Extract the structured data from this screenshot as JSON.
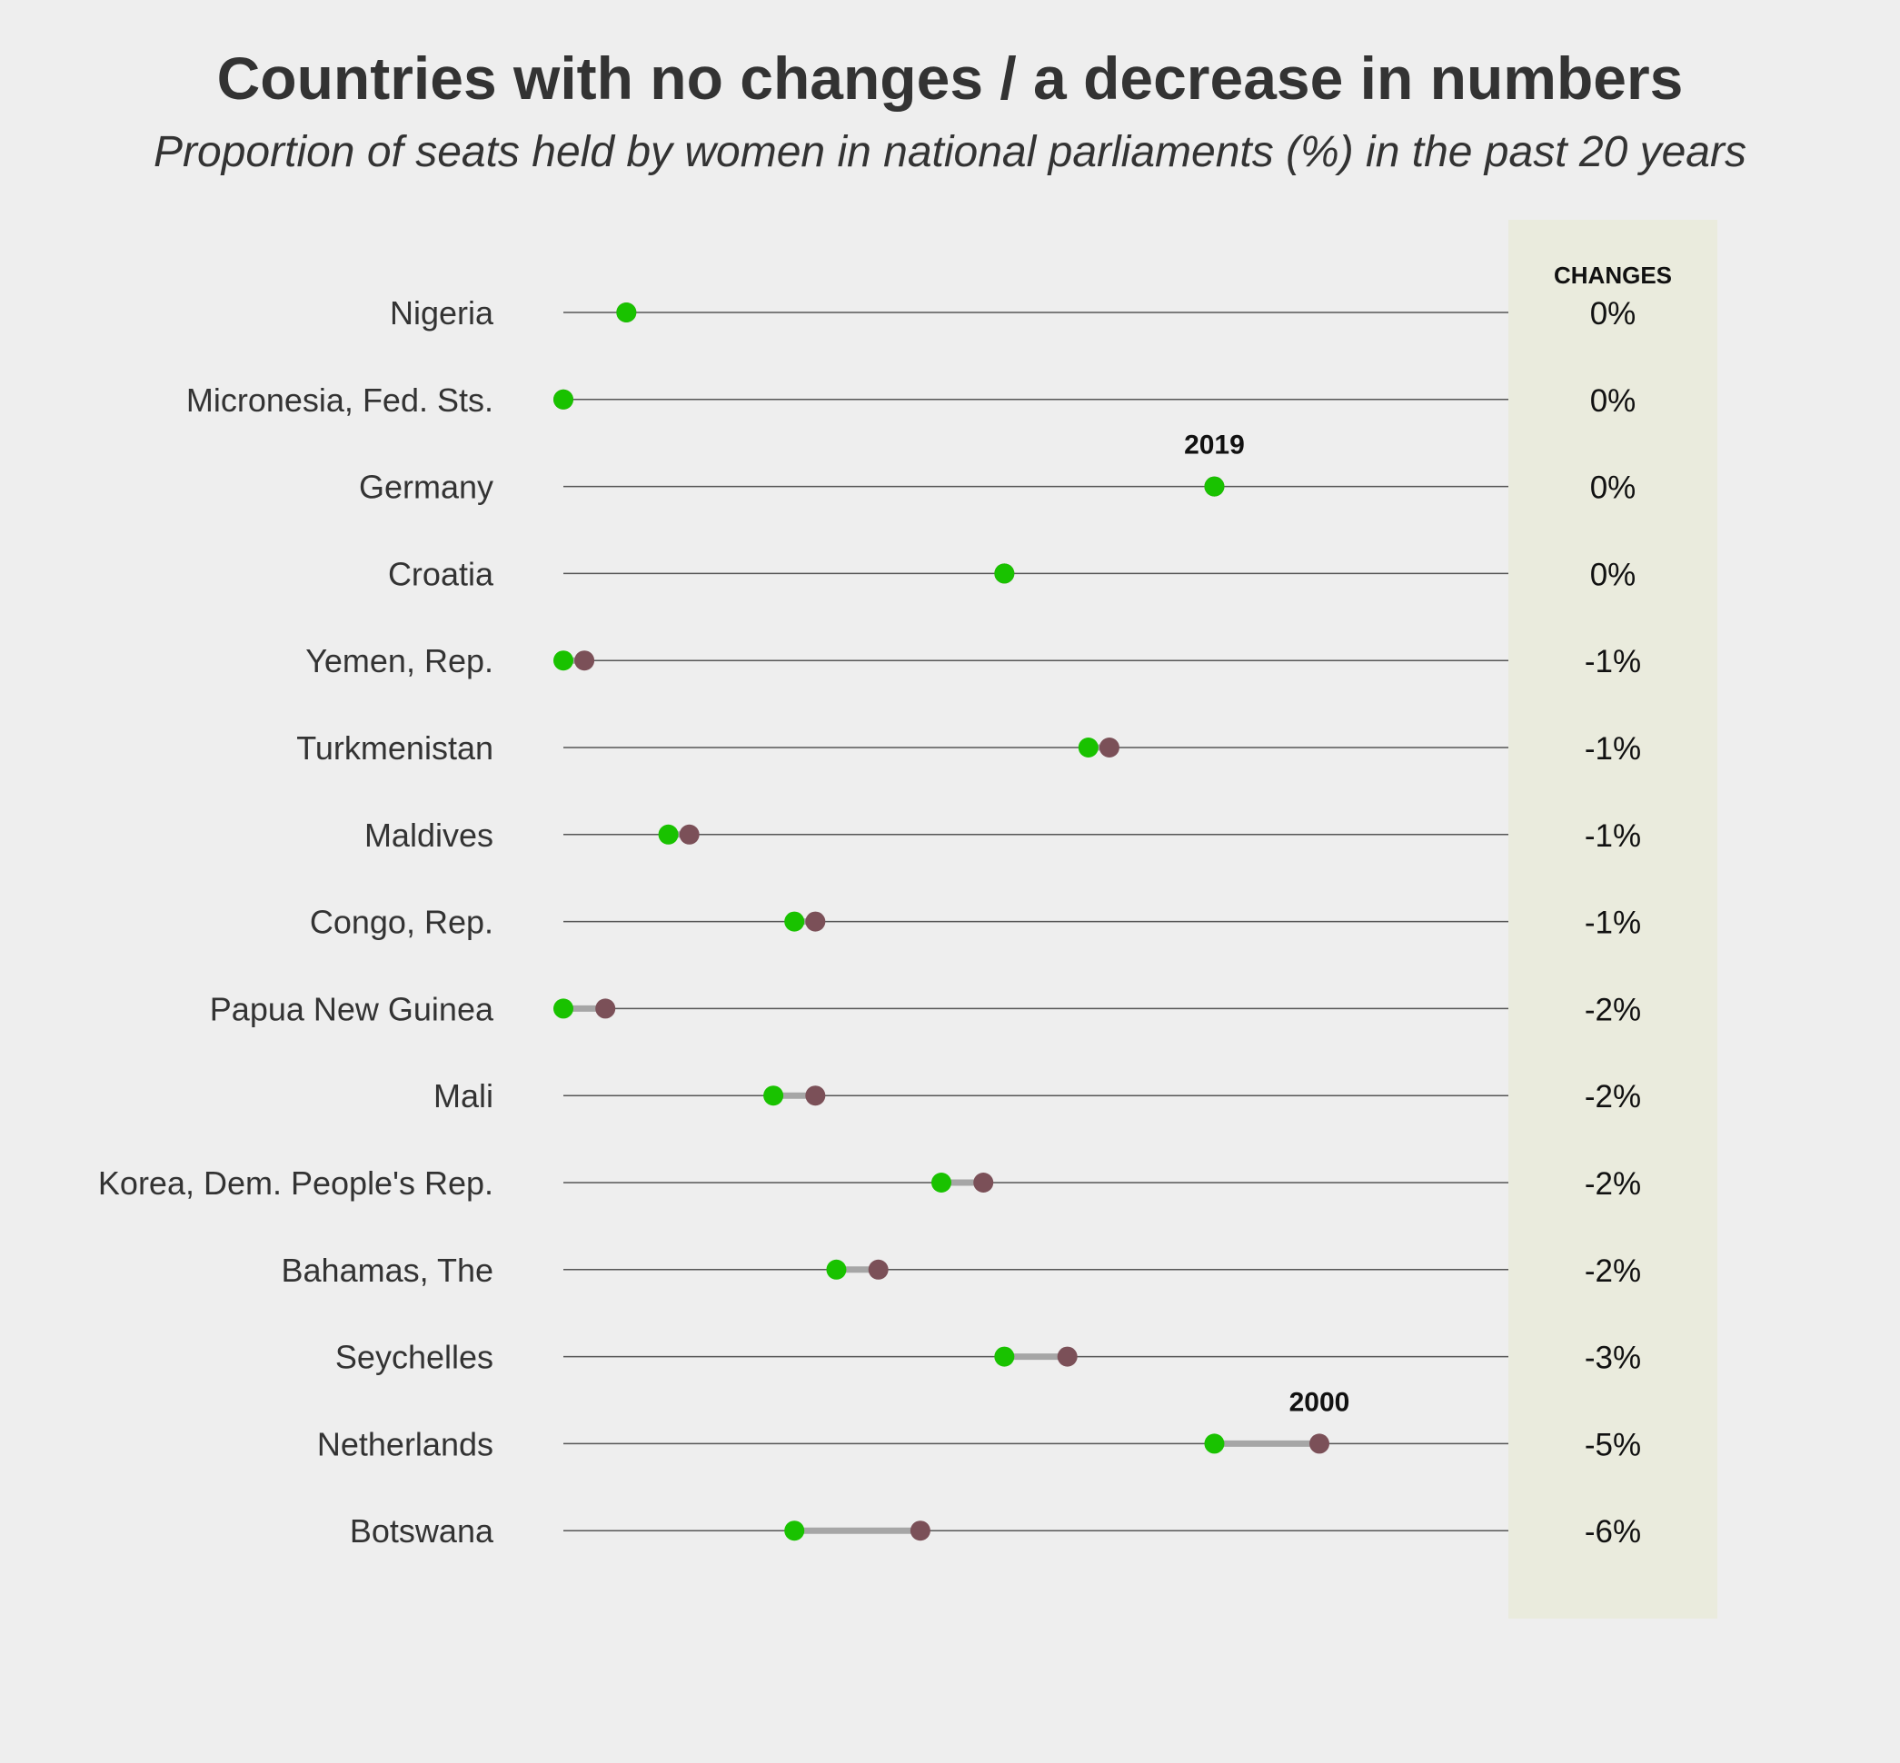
{
  "chart_data": {
    "type": "dumbbell",
    "title": "Countries with no changes / a decrease in numbers",
    "subtitle": "Proportion of seats held by women in national parliaments (%) in the past 20 years",
    "changes_header": "CHANGES",
    "year_start_label": "2000",
    "year_end_label": "2019",
    "colors": {
      "start": "#7b5058",
      "end": "#19c200",
      "connector": "#a6a6a6",
      "changes_panel": "#eaebdd",
      "row_line": "#555555"
    },
    "xlim": [
      0,
      45
    ],
    "rows": [
      {
        "country": "Nigeria",
        "start": 3,
        "end": 3,
        "change": "0%"
      },
      {
        "country": "Micronesia, Fed. Sts.",
        "start": 0,
        "end": 0,
        "change": "0%"
      },
      {
        "country": "Germany",
        "start": 31,
        "end": 31,
        "change": "0%"
      },
      {
        "country": "Croatia",
        "start": 21,
        "end": 21,
        "change": "0%"
      },
      {
        "country": "Yemen, Rep.",
        "start": 1,
        "end": 0,
        "change": "-1%"
      },
      {
        "country": "Turkmenistan",
        "start": 26,
        "end": 25,
        "change": "-1%"
      },
      {
        "country": "Maldives",
        "start": 6,
        "end": 5,
        "change": "-1%"
      },
      {
        "country": "Congo, Rep.",
        "start": 12,
        "end": 11,
        "change": "-1%"
      },
      {
        "country": "Papua New Guinea",
        "start": 2,
        "end": 0,
        "change": "-2%"
      },
      {
        "country": "Mali",
        "start": 12,
        "end": 10,
        "change": "-2%"
      },
      {
        "country": "Korea, Dem. People's Rep.",
        "start": 20,
        "end": 18,
        "change": "-2%"
      },
      {
        "country": "Bahamas, The",
        "start": 15,
        "end": 13,
        "change": "-2%"
      },
      {
        "country": "Seychelles",
        "start": 24,
        "end": 21,
        "change": "-3%"
      },
      {
        "country": "Netherlands",
        "start": 36,
        "end": 31,
        "change": "-5%"
      },
      {
        "country": "Botswana",
        "start": 17,
        "end": 11,
        "change": "-6%"
      }
    ],
    "year_labels_on": [
      "Germany",
      "Netherlands"
    ]
  }
}
